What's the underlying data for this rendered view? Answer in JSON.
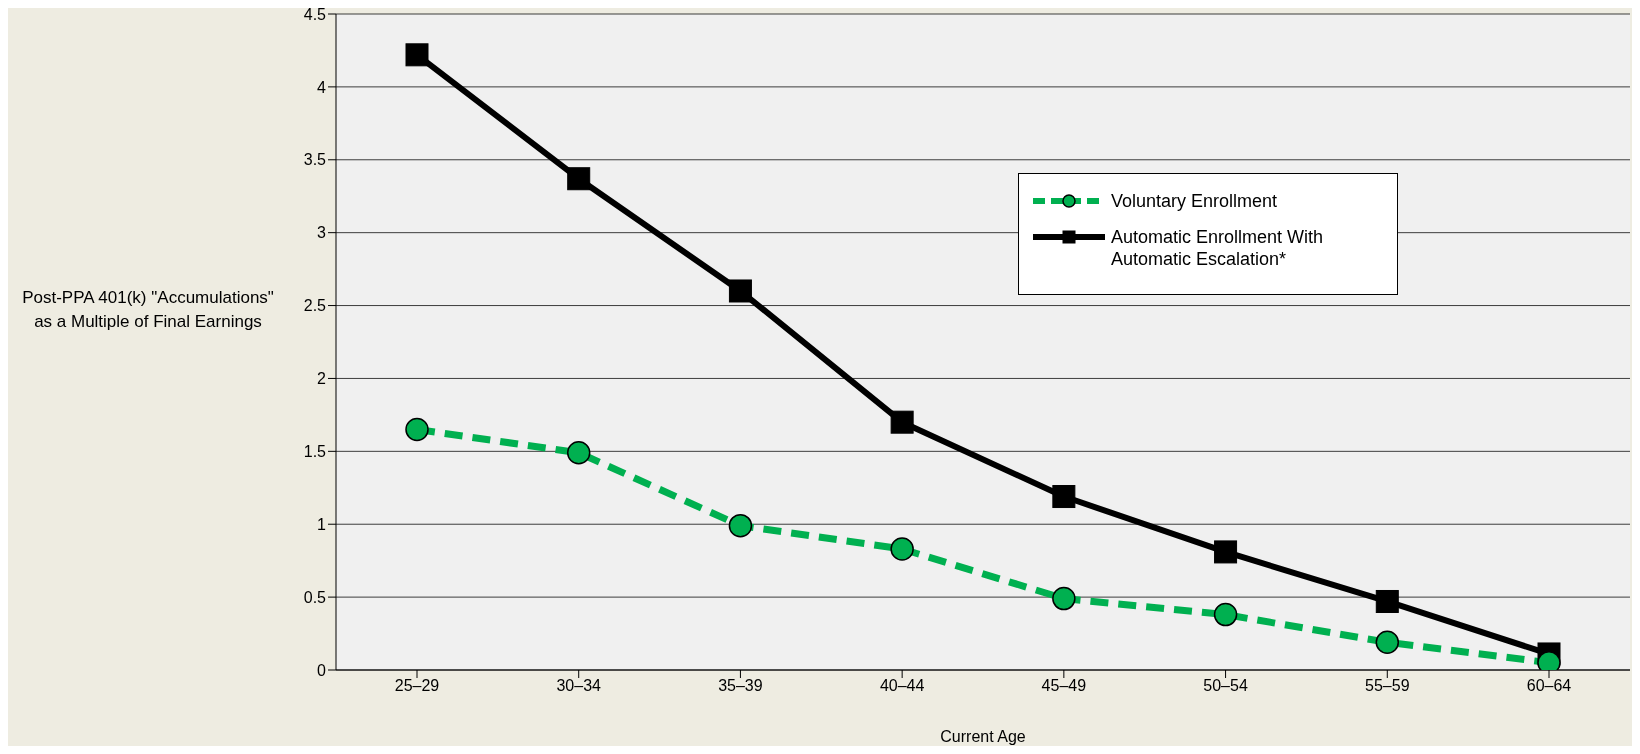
{
  "chart_data": {
    "type": "line",
    "xlabel": "Current Age",
    "ylabel": "Post-PPA 401(k) \"Accumulations\" as a Multiple of Final Earnings",
    "categories": [
      "25–29",
      "30–34",
      "35–39",
      "40–44",
      "45–49",
      "50–54",
      "55–59",
      "60–64"
    ],
    "series": [
      {
        "name": "Voluntary Enrollment",
        "color": "#00b050",
        "marker": "circle",
        "line_style": "dashed",
        "values": [
          1.65,
          1.49,
          0.99,
          0.83,
          0.49,
          0.38,
          0.19,
          0.05
        ]
      },
      {
        "name": "Automatic Enrollment With Automatic Escalation*",
        "color": "#000000",
        "marker": "square",
        "line_style": "solid",
        "values": [
          4.22,
          3.37,
          2.6,
          1.7,
          1.19,
          0.81,
          0.47,
          0.11
        ]
      }
    ],
    "ylim": [
      0,
      4.5
    ],
    "yticks": [
      0,
      0.5,
      1,
      1.5,
      2,
      2.5,
      3,
      3.5,
      4,
      4.5
    ],
    "grid": "y",
    "legend": "top right"
  }
}
